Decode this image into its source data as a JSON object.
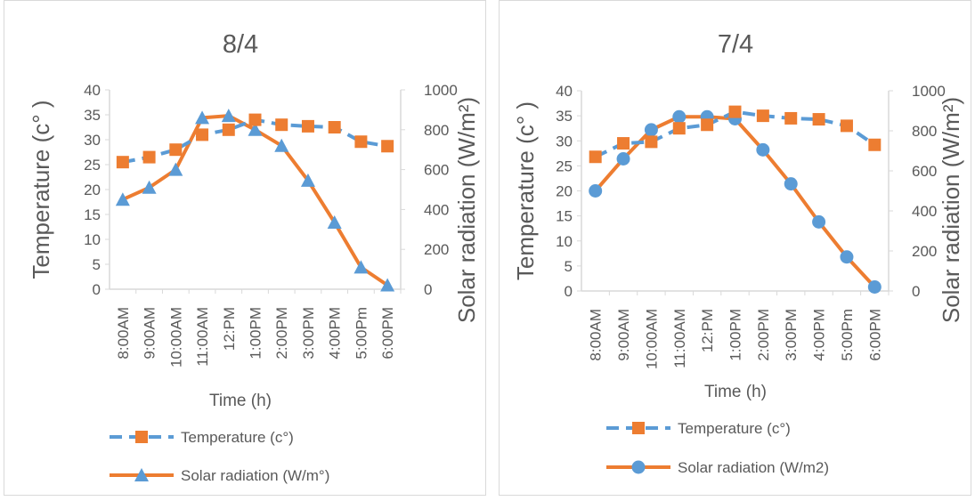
{
  "colors": {
    "temperature": "#5b9bd5",
    "temperature_marker": "#ed7d31",
    "solar": "#ed7d31",
    "solar_marker_left": "#5b9bd5",
    "solar_marker_right": "#5b9bd5",
    "axis": "#d9d9d9",
    "text": "#595959"
  },
  "chart_data": [
    {
      "type": "line",
      "title": "8/4",
      "xlabel": "Time (h)",
      "ylabel": "Temperature (c° )",
      "y2label": "Solar radiation (W/m²)",
      "categories": [
        "8:00AM",
        "9:00AM",
        "10:00AM",
        "11:00AM",
        "12:PM",
        "1:00PM",
        "2:00PM",
        "3:00PM",
        "4:00PM",
        "5:00Pm",
        "6:00PM"
      ],
      "ylim": [
        0,
        40
      ],
      "yticks": [
        "0",
        "5",
        "10",
        "15",
        "20",
        "25",
        "30",
        "35",
        "40"
      ],
      "y2lim": [
        0,
        1000
      ],
      "y2ticks": [
        "0",
        "200",
        "400",
        "600",
        "800",
        "1000"
      ],
      "series": [
        {
          "name": "Temperature (c°)",
          "axis": "left",
          "style": "dashed",
          "marker": "square",
          "values": [
            25.5,
            26.5,
            28,
            31,
            32,
            34,
            33,
            32.7,
            32.5,
            29.6,
            28.7
          ]
        },
        {
          "name": "Solar radiation (W/m°)",
          "axis": "right",
          "style": "solid",
          "marker": "triangle",
          "values": [
            450,
            510,
            600,
            860,
            870,
            800,
            720,
            545,
            335,
            110,
            20
          ]
        }
      ],
      "legend_position": "bottom"
    },
    {
      "type": "line",
      "title": "7/4",
      "xlabel": "Time (h)",
      "ylabel": "Temperature (c° )",
      "y2label": "Solar radiation (W/m²)",
      "categories": [
        "8:00AM",
        "9:00AM",
        "10:00AM",
        "11:00AM",
        "12:PM",
        "1:00PM",
        "2:00PM",
        "3:00PM",
        "4:00PM",
        "5:00Pm",
        "6:00PM"
      ],
      "ylim": [
        0,
        40
      ],
      "yticks": [
        "0",
        "5",
        "10",
        "15",
        "20",
        "25",
        "30",
        "35",
        "40"
      ],
      "y2lim": [
        0,
        1000
      ],
      "y2ticks": [
        "0",
        "200",
        "400",
        "600",
        "800",
        "1000"
      ],
      "series": [
        {
          "name": "Temperature (c°)",
          "axis": "left",
          "style": "dashed",
          "marker": "square",
          "values": [
            26.8,
            29.5,
            29.8,
            32.5,
            33.2,
            35.8,
            35,
            34.5,
            34.3,
            33,
            29.2
          ]
        },
        {
          "name": "Solar radiation (W/m2)",
          "axis": "right",
          "style": "solid",
          "marker": "circle",
          "values": [
            500,
            660,
            805,
            870,
            870,
            860,
            705,
            535,
            345,
            170,
            20
          ]
        }
      ],
      "legend_position": "bottom"
    }
  ]
}
